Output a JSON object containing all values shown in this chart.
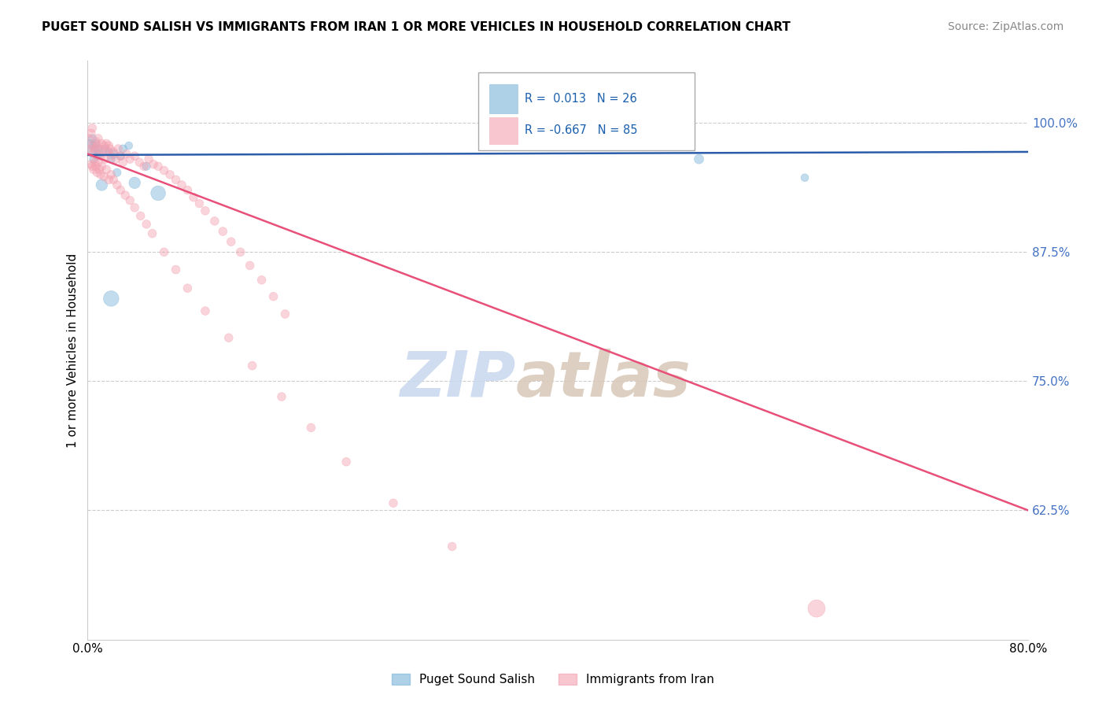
{
  "title": "PUGET SOUND SALISH VS IMMIGRANTS FROM IRAN 1 OR MORE VEHICLES IN HOUSEHOLD CORRELATION CHART",
  "source": "Source: ZipAtlas.com",
  "ylabel": "1 or more Vehicles in Household",
  "legend_label1": "Puget Sound Salish",
  "legend_label2": "Immigrants from Iran",
  "R1": 0.013,
  "N1": 26,
  "R2": -0.667,
  "N2": 85,
  "xmin": 0.0,
  "xmax": 0.8,
  "ymin": 0.5,
  "ymax": 1.06,
  "yticks": [
    0.625,
    0.75,
    0.875,
    1.0
  ],
  "ytick_labels": [
    "62.5%",
    "75.0%",
    "87.5%",
    "100.0%"
  ],
  "xticks": [
    0.0,
    0.1,
    0.2,
    0.3,
    0.4,
    0.5,
    0.6,
    0.7,
    0.8
  ],
  "xtick_labels": [
    "0.0%",
    "",
    "",
    "",
    "",
    "",
    "",
    "",
    "80.0%"
  ],
  "color_blue": "#7ab3d9",
  "color_pink": "#f4a0b0",
  "trend_blue": "#2a5ca8",
  "trend_pink": "#e8507a",
  "watermark_zip": "ZIP",
  "watermark_atlas": "atlas",
  "blue_trend_x0": 0.0,
  "blue_trend_y0": 0.969,
  "blue_trend_x1": 0.8,
  "blue_trend_y1": 0.972,
  "pink_trend_x0": 0.0,
  "pink_trend_y0": 0.97,
  "pink_trend_x1": 0.8,
  "pink_trend_y1": 0.625,
  "blue_points_x": [
    0.002,
    0.003,
    0.004,
    0.005,
    0.005,
    0.006,
    0.007,
    0.008,
    0.009,
    0.01,
    0.012,
    0.015,
    0.018,
    0.02,
    0.022,
    0.025,
    0.028,
    0.03,
    0.035,
    0.04,
    0.05,
    0.06,
    0.37,
    0.52,
    0.61,
    0.02
  ],
  "blue_points_y": [
    0.98,
    0.972,
    0.985,
    0.978,
    0.965,
    0.975,
    0.98,
    0.968,
    0.975,
    0.97,
    0.94,
    0.975,
    0.972,
    0.965,
    0.97,
    0.952,
    0.968,
    0.975,
    0.978,
    0.942,
    0.958,
    0.932,
    0.985,
    0.965,
    0.947,
    0.83
  ],
  "blue_sizes": [
    55,
    70,
    55,
    50,
    55,
    50,
    55,
    50,
    55,
    55,
    110,
    55,
    50,
    55,
    70,
    55,
    60,
    55,
    50,
    110,
    55,
    180,
    50,
    75,
    50,
    200
  ],
  "pink_points_x": [
    0.001,
    0.002,
    0.003,
    0.004,
    0.004,
    0.005,
    0.006,
    0.007,
    0.008,
    0.009,
    0.01,
    0.011,
    0.012,
    0.013,
    0.014,
    0.015,
    0.016,
    0.017,
    0.018,
    0.019,
    0.02,
    0.022,
    0.024,
    0.026,
    0.028,
    0.03,
    0.033,
    0.036,
    0.04,
    0.044,
    0.048,
    0.052,
    0.056,
    0.06,
    0.065,
    0.07,
    0.075,
    0.08,
    0.085,
    0.09,
    0.095,
    0.1,
    0.108,
    0.115,
    0.122,
    0.13,
    0.138,
    0.148,
    0.158,
    0.168,
    0.003,
    0.004,
    0.005,
    0.006,
    0.007,
    0.008,
    0.009,
    0.01,
    0.011,
    0.012,
    0.014,
    0.016,
    0.018,
    0.02,
    0.022,
    0.025,
    0.028,
    0.032,
    0.036,
    0.04,
    0.045,
    0.05,
    0.055,
    0.065,
    0.075,
    0.085,
    0.1,
    0.12,
    0.14,
    0.165,
    0.19,
    0.22,
    0.26,
    0.31,
    0.62
  ],
  "pink_points_y": [
    0.985,
    0.975,
    0.99,
    0.978,
    0.995,
    0.97,
    0.975,
    0.982,
    0.978,
    0.985,
    0.975,
    0.968,
    0.98,
    0.972,
    0.978,
    0.965,
    0.98,
    0.972,
    0.978,
    0.975,
    0.968,
    0.972,
    0.965,
    0.975,
    0.968,
    0.962,
    0.97,
    0.965,
    0.968,
    0.962,
    0.958,
    0.965,
    0.96,
    0.958,
    0.954,
    0.95,
    0.945,
    0.94,
    0.935,
    0.928,
    0.922,
    0.915,
    0.905,
    0.895,
    0.885,
    0.875,
    0.862,
    0.848,
    0.832,
    0.815,
    0.96,
    0.958,
    0.955,
    0.962,
    0.958,
    0.952,
    0.962,
    0.955,
    0.95,
    0.958,
    0.948,
    0.955,
    0.945,
    0.95,
    0.945,
    0.94,
    0.935,
    0.93,
    0.925,
    0.918,
    0.91,
    0.902,
    0.893,
    0.875,
    0.858,
    0.84,
    0.818,
    0.792,
    0.765,
    0.735,
    0.705,
    0.672,
    0.632,
    0.59,
    0.53
  ],
  "pink_sizes": [
    60,
    60,
    60,
    60,
    60,
    60,
    60,
    60,
    60,
    60,
    60,
    60,
    60,
    60,
    60,
    60,
    60,
    60,
    60,
    60,
    60,
    60,
    60,
    60,
    60,
    60,
    60,
    60,
    60,
    60,
    60,
    60,
    60,
    60,
    60,
    60,
    60,
    60,
    60,
    60,
    60,
    60,
    60,
    60,
    60,
    60,
    60,
    60,
    60,
    60,
    60,
    60,
    60,
    60,
    60,
    60,
    60,
    60,
    60,
    60,
    60,
    60,
    60,
    60,
    60,
    60,
    60,
    60,
    60,
    60,
    60,
    60,
    60,
    60,
    60,
    60,
    60,
    60,
    60,
    60,
    60,
    60,
    60,
    60,
    250
  ]
}
